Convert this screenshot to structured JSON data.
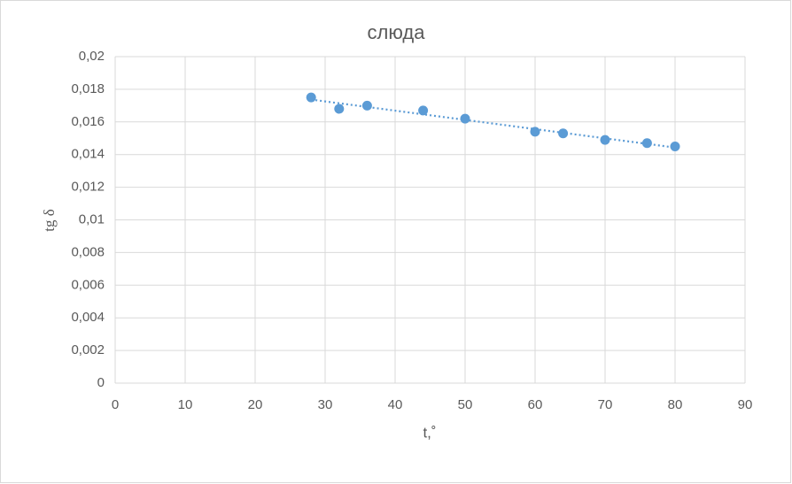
{
  "chart_data": {
    "type": "scatter",
    "title": "слюда",
    "xlabel": "t,˚",
    "ylabel": "tg δ",
    "series": [
      {
        "name": "tg δ",
        "color": "#5b9bd5",
        "x": [
          28,
          32,
          36,
          44,
          50,
          60,
          64,
          70,
          76,
          80
        ],
        "values": [
          0.0175,
          0.0168,
          0.017,
          0.0167,
          0.0162,
          0.0154,
          0.0153,
          0.0149,
          0.0147,
          0.0145
        ]
      }
    ],
    "trendline": "linear",
    "xlim": [
      0,
      90
    ],
    "xticks": [
      0,
      10,
      20,
      30,
      40,
      50,
      60,
      70,
      80,
      90
    ],
    "ylim": [
      0,
      0.02
    ],
    "yticks": [
      0,
      {
        "value": 0.002,
        "label": "0,002"
      },
      {
        "value": 0.004,
        "label": "0,004"
      },
      {
        "value": 0.006,
        "label": "0,006"
      },
      {
        "value": 0.008,
        "label": "0,008"
      },
      {
        "value": 0.01,
        "label": "0,01"
      },
      {
        "value": 0.012,
        "label": "0,012"
      },
      {
        "value": 0.014,
        "label": "0,014"
      },
      {
        "value": 0.016,
        "label": "0,016"
      },
      {
        "value": 0.018,
        "label": "0,018"
      },
      {
        "value": 0.02,
        "label": "0,02"
      }
    ],
    "grid": true
  }
}
